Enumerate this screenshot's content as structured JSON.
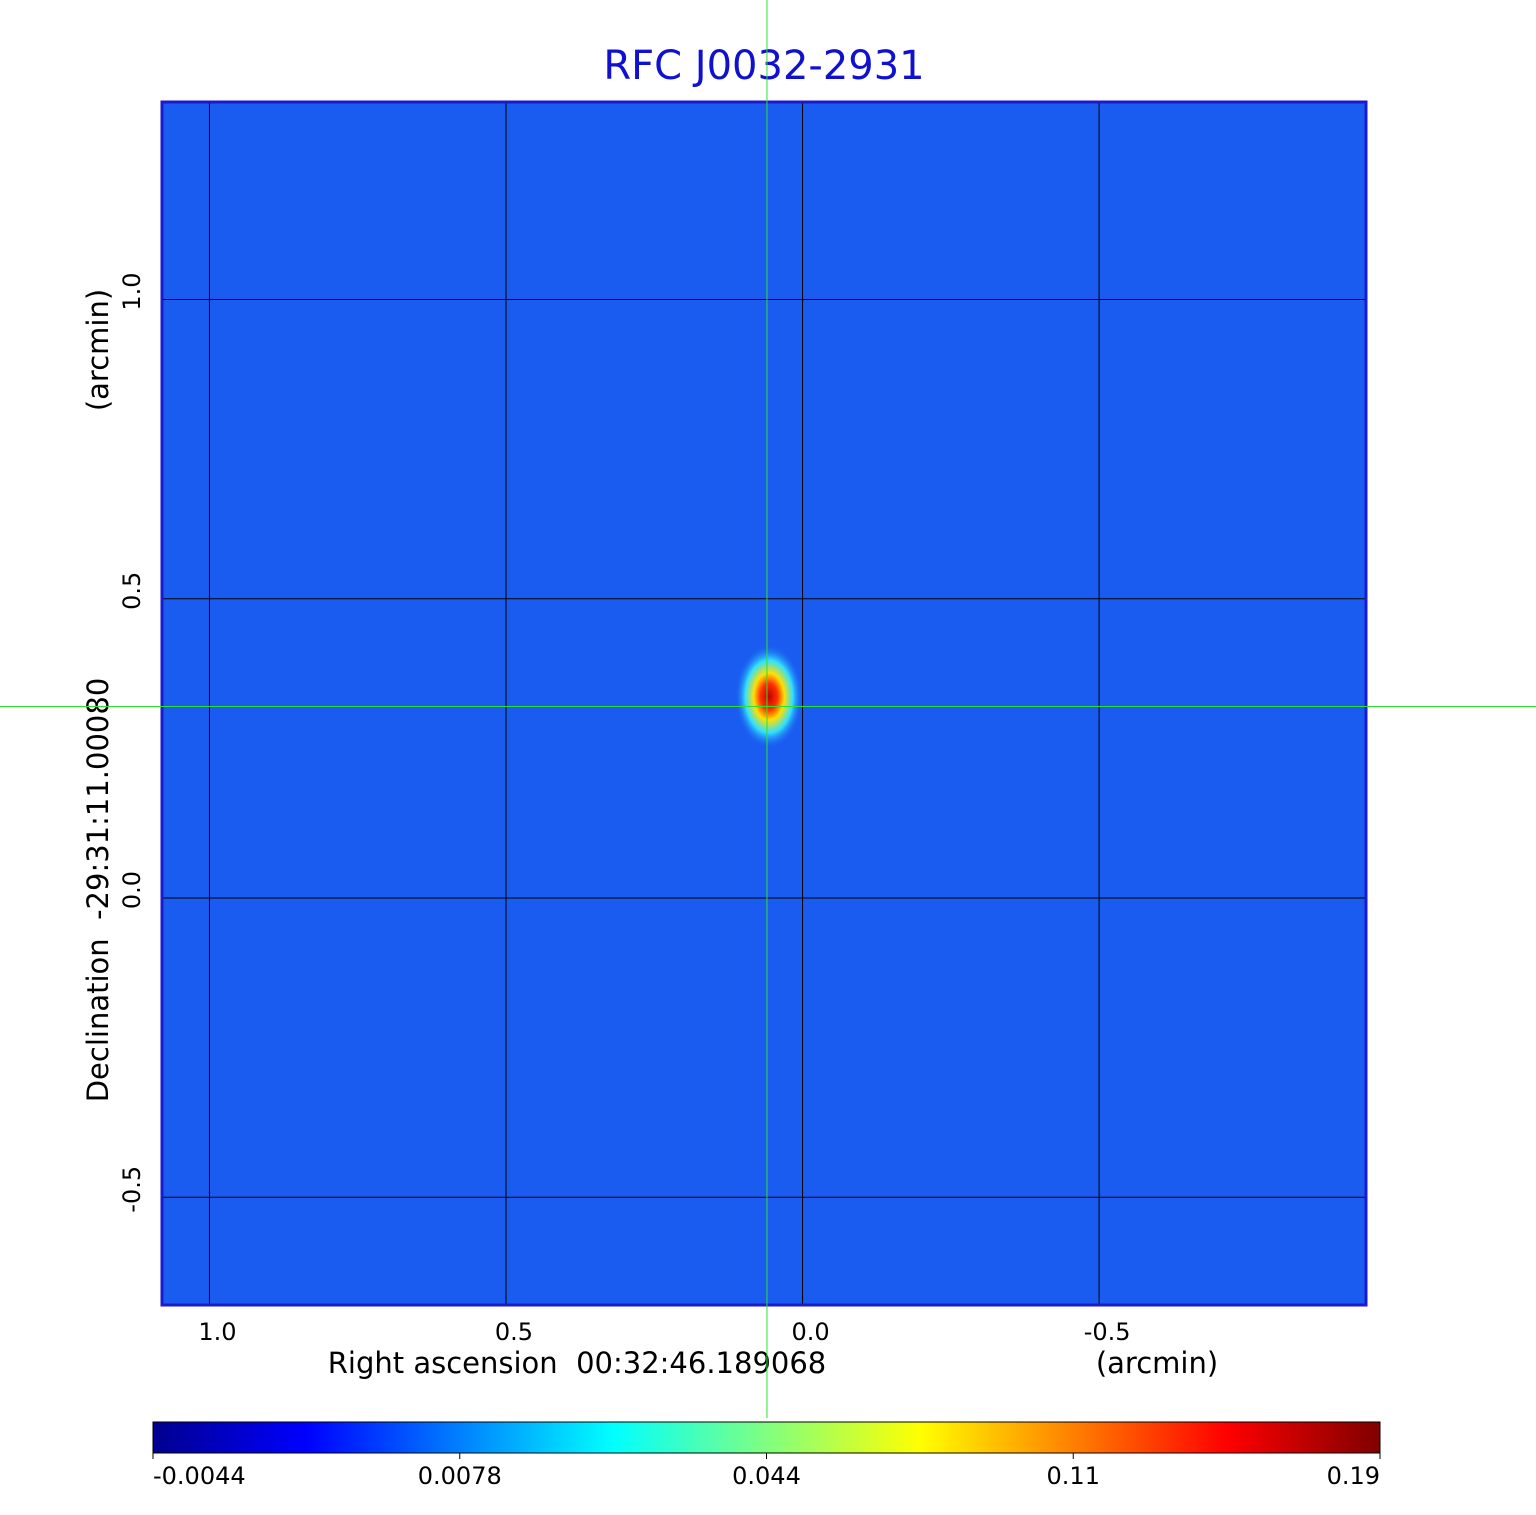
{
  "chart_data": {
    "type": "image",
    "title": "RFC J0032-2931",
    "xlabel": "Right ascension  00:32:46.189068",
    "xunit": "(arcmin)",
    "ylabel": "Declination  -29:31:11.00080",
    "yunit": "(arcmin)",
    "xlim": [
      1.08,
      -0.95
    ],
    "ylim": [
      -0.68,
      1.33
    ],
    "xticks": [
      {
        "value": 1.0,
        "label": "1.0"
      },
      {
        "value": 0.5,
        "label": "0.5"
      },
      {
        "value": 0.0,
        "label": "0.0"
      },
      -0.5
    ],
    "yticks": [
      {
        "value": -0.5,
        "label": "-0.5"
      },
      {
        "value": 0.0,
        "label": "0.0"
      },
      {
        "value": 0.5,
        "label": "0.5"
      },
      {
        "value": 1.0,
        "label": "1.0"
      }
    ],
    "grid": true,
    "crosshair": {
      "x": 0.06,
      "y": 0.32
    },
    "colormap": "jet",
    "colorbar_ticks": [
      -0.0044,
      0.0078,
      0.044,
      0.11,
      0.19
    ]
  }
}
